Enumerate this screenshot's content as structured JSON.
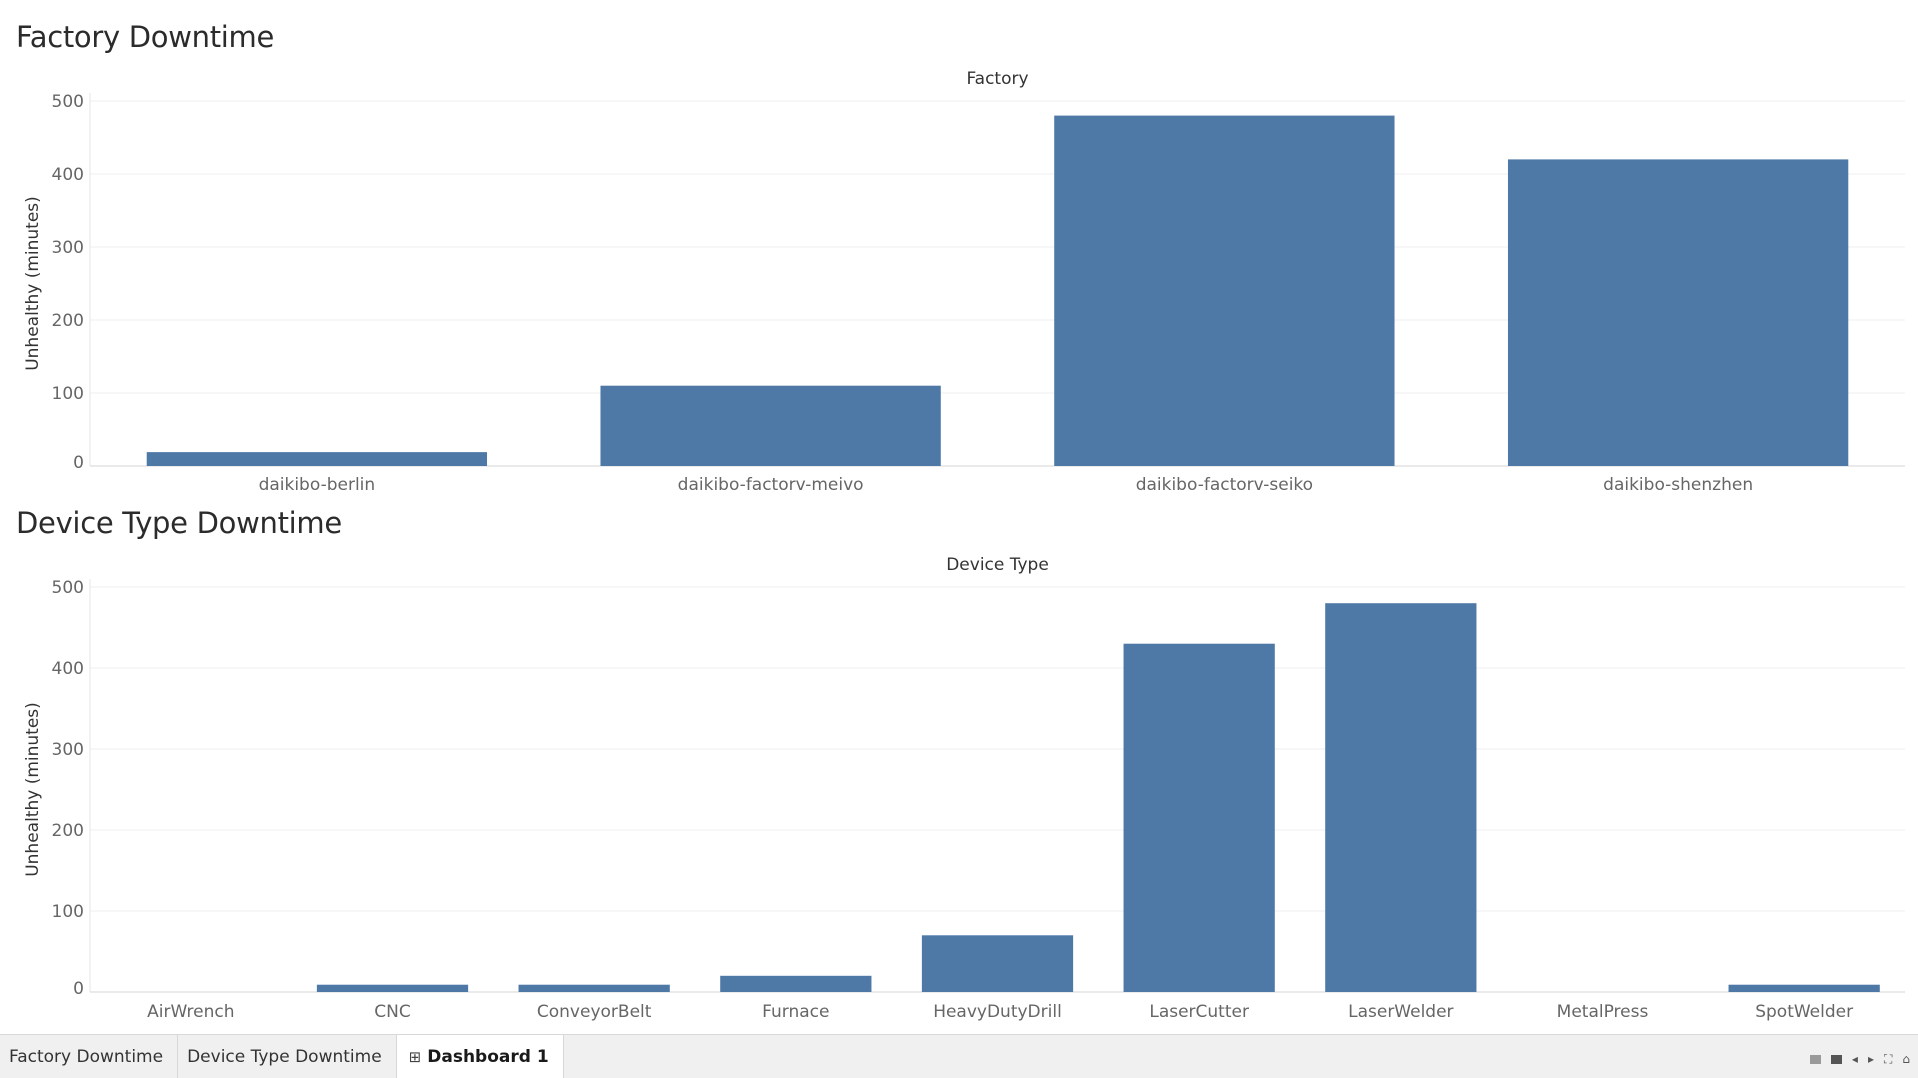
{
  "dashboard": {
    "sections": [
      {
        "title": "Factory Downtime"
      },
      {
        "title": "Device Type Downtime"
      }
    ]
  },
  "chart_data": [
    {
      "type": "bar",
      "title": "Factory Downtime",
      "header": "Factory",
      "xlabel": "",
      "ylabel": "Unhealthy (minutes)",
      "ylim": [
        0,
        500
      ],
      "yticks": [
        0,
        100,
        200,
        300,
        400,
        500
      ],
      "grid": true,
      "categories": [
        "daikibo-berlin",
        "daikibo-factorv-meivo",
        "daikibo-factorv-seiko",
        "daikibo-shenzhen"
      ],
      "values": [
        19,
        110,
        480,
        420
      ],
      "bar_color": "#4e79a7"
    },
    {
      "type": "bar",
      "title": "Device Type Downtime",
      "header": "Device Type",
      "xlabel": "",
      "ylabel": "Unhealthy (minutes)",
      "ylim": [
        0,
        500
      ],
      "yticks": [
        0,
        100,
        200,
        300,
        400,
        500
      ],
      "grid": true,
      "categories": [
        "AirWrench",
        "CNC",
        "ConveyorBelt",
        "Furnace",
        "HeavyDutyDrill",
        "LaserCutter",
        "LaserWelder",
        "MetalPress",
        "SpotWelder"
      ],
      "values": [
        0,
        9,
        9,
        20,
        70,
        430,
        480,
        0,
        9
      ],
      "bar_color": "#4e79a7"
    }
  ],
  "tabs": [
    {
      "label": "Factory Downtime",
      "active": false
    },
    {
      "label": "Device Type Downtime",
      "active": false
    },
    {
      "label": "Dashboard 1",
      "active": true,
      "icon": "dashboard-grid-icon",
      "glyph": "⊞"
    }
  ],
  "tab_controls": [
    {
      "icon": "grid-view-icon"
    },
    {
      "icon": "single-view-icon"
    },
    {
      "icon": "previous-arrow-icon",
      "glyph": "◂"
    },
    {
      "icon": "next-arrow-icon",
      "glyph": "▸"
    },
    {
      "icon": "fullscreen-icon",
      "glyph": "⛶"
    },
    {
      "icon": "presentation-icon",
      "glyph": "⌂"
    }
  ]
}
